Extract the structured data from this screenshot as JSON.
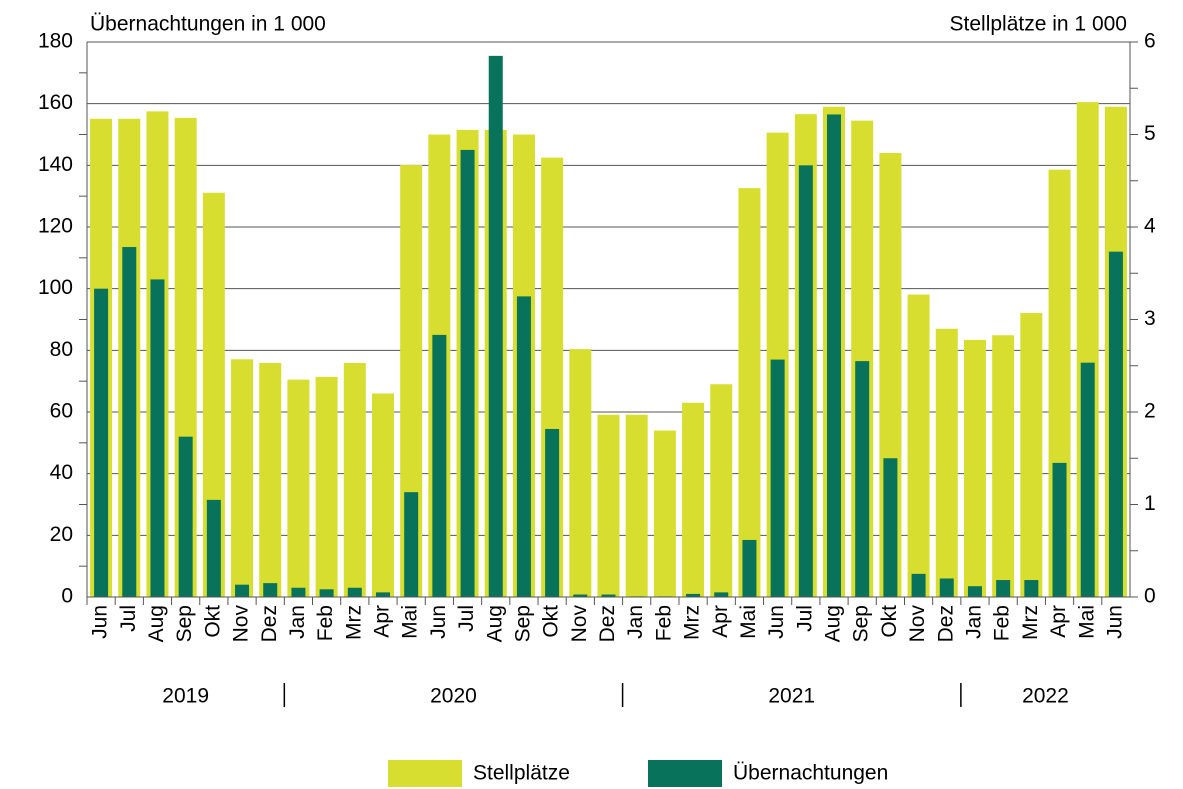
{
  "chart_data": {
    "type": "bar",
    "ylabel": "Übernachtungen in 1 000",
    "y2label": "Stellplätze in 1 000",
    "categories": [
      "Jun",
      "Jul",
      "Aug",
      "Sep",
      "Okt",
      "Nov",
      "Dez",
      "Jan",
      "Feb",
      "Mrz",
      "Apr",
      "Mai",
      "Jun",
      "Jul",
      "Aug",
      "Sep",
      "Okt",
      "Nov",
      "Dez",
      "Jan",
      "Feb",
      "Mrz",
      "Apr",
      "Mai",
      "Jun",
      "Jul",
      "Aug",
      "Sep",
      "Okt",
      "Nov",
      "Dez",
      "Jan",
      "Feb",
      "Mrz",
      "Apr",
      "Mai",
      "Jun"
    ],
    "category_groups": [
      {
        "label": "2019",
        "span": 7
      },
      {
        "label": "2020",
        "span": 12
      },
      {
        "label": "2021",
        "span": 12
      },
      {
        "label": "2022",
        "span": 6
      }
    ],
    "series": [
      {
        "name": "Stellplätze",
        "color": "#d7de2f",
        "axis": "y2",
        "values": [
          5.17,
          5.17,
          5.25,
          5.18,
          4.37,
          2.57,
          2.53,
          2.35,
          2.38,
          2.53,
          2.2,
          4.67,
          5.0,
          5.05,
          5.05,
          5.0,
          4.75,
          2.68,
          1.97,
          1.97,
          1.8,
          2.1,
          2.3,
          4.42,
          5.02,
          5.22,
          5.3,
          5.15,
          4.8,
          3.27,
          2.9,
          2.78,
          2.83,
          3.07,
          4.62,
          5.35,
          5.3
        ]
      },
      {
        "name": "Übernachtungen",
        "color": "#08735a",
        "values": [
          100,
          113.5,
          103,
          52,
          31.5,
          4,
          4.5,
          3,
          2.5,
          3,
          1.5,
          34,
          85,
          145,
          175.5,
          97.5,
          54.5,
          0.8,
          0.8,
          0.2,
          0.2,
          1,
          1.5,
          18.5,
          77,
          140,
          156.5,
          76.5,
          45,
          7.5,
          6,
          3.5,
          5.5,
          5.5,
          43.5,
          76,
          112
        ]
      }
    ],
    "ylim": [
      0,
      180
    ],
    "yticks": [
      0,
      20,
      40,
      60,
      80,
      100,
      120,
      140,
      160,
      180
    ],
    "y2lim": [
      0,
      6
    ],
    "y2ticks": [
      0,
      1,
      2,
      3,
      4,
      5,
      6
    ],
    "grid": true
  }
}
